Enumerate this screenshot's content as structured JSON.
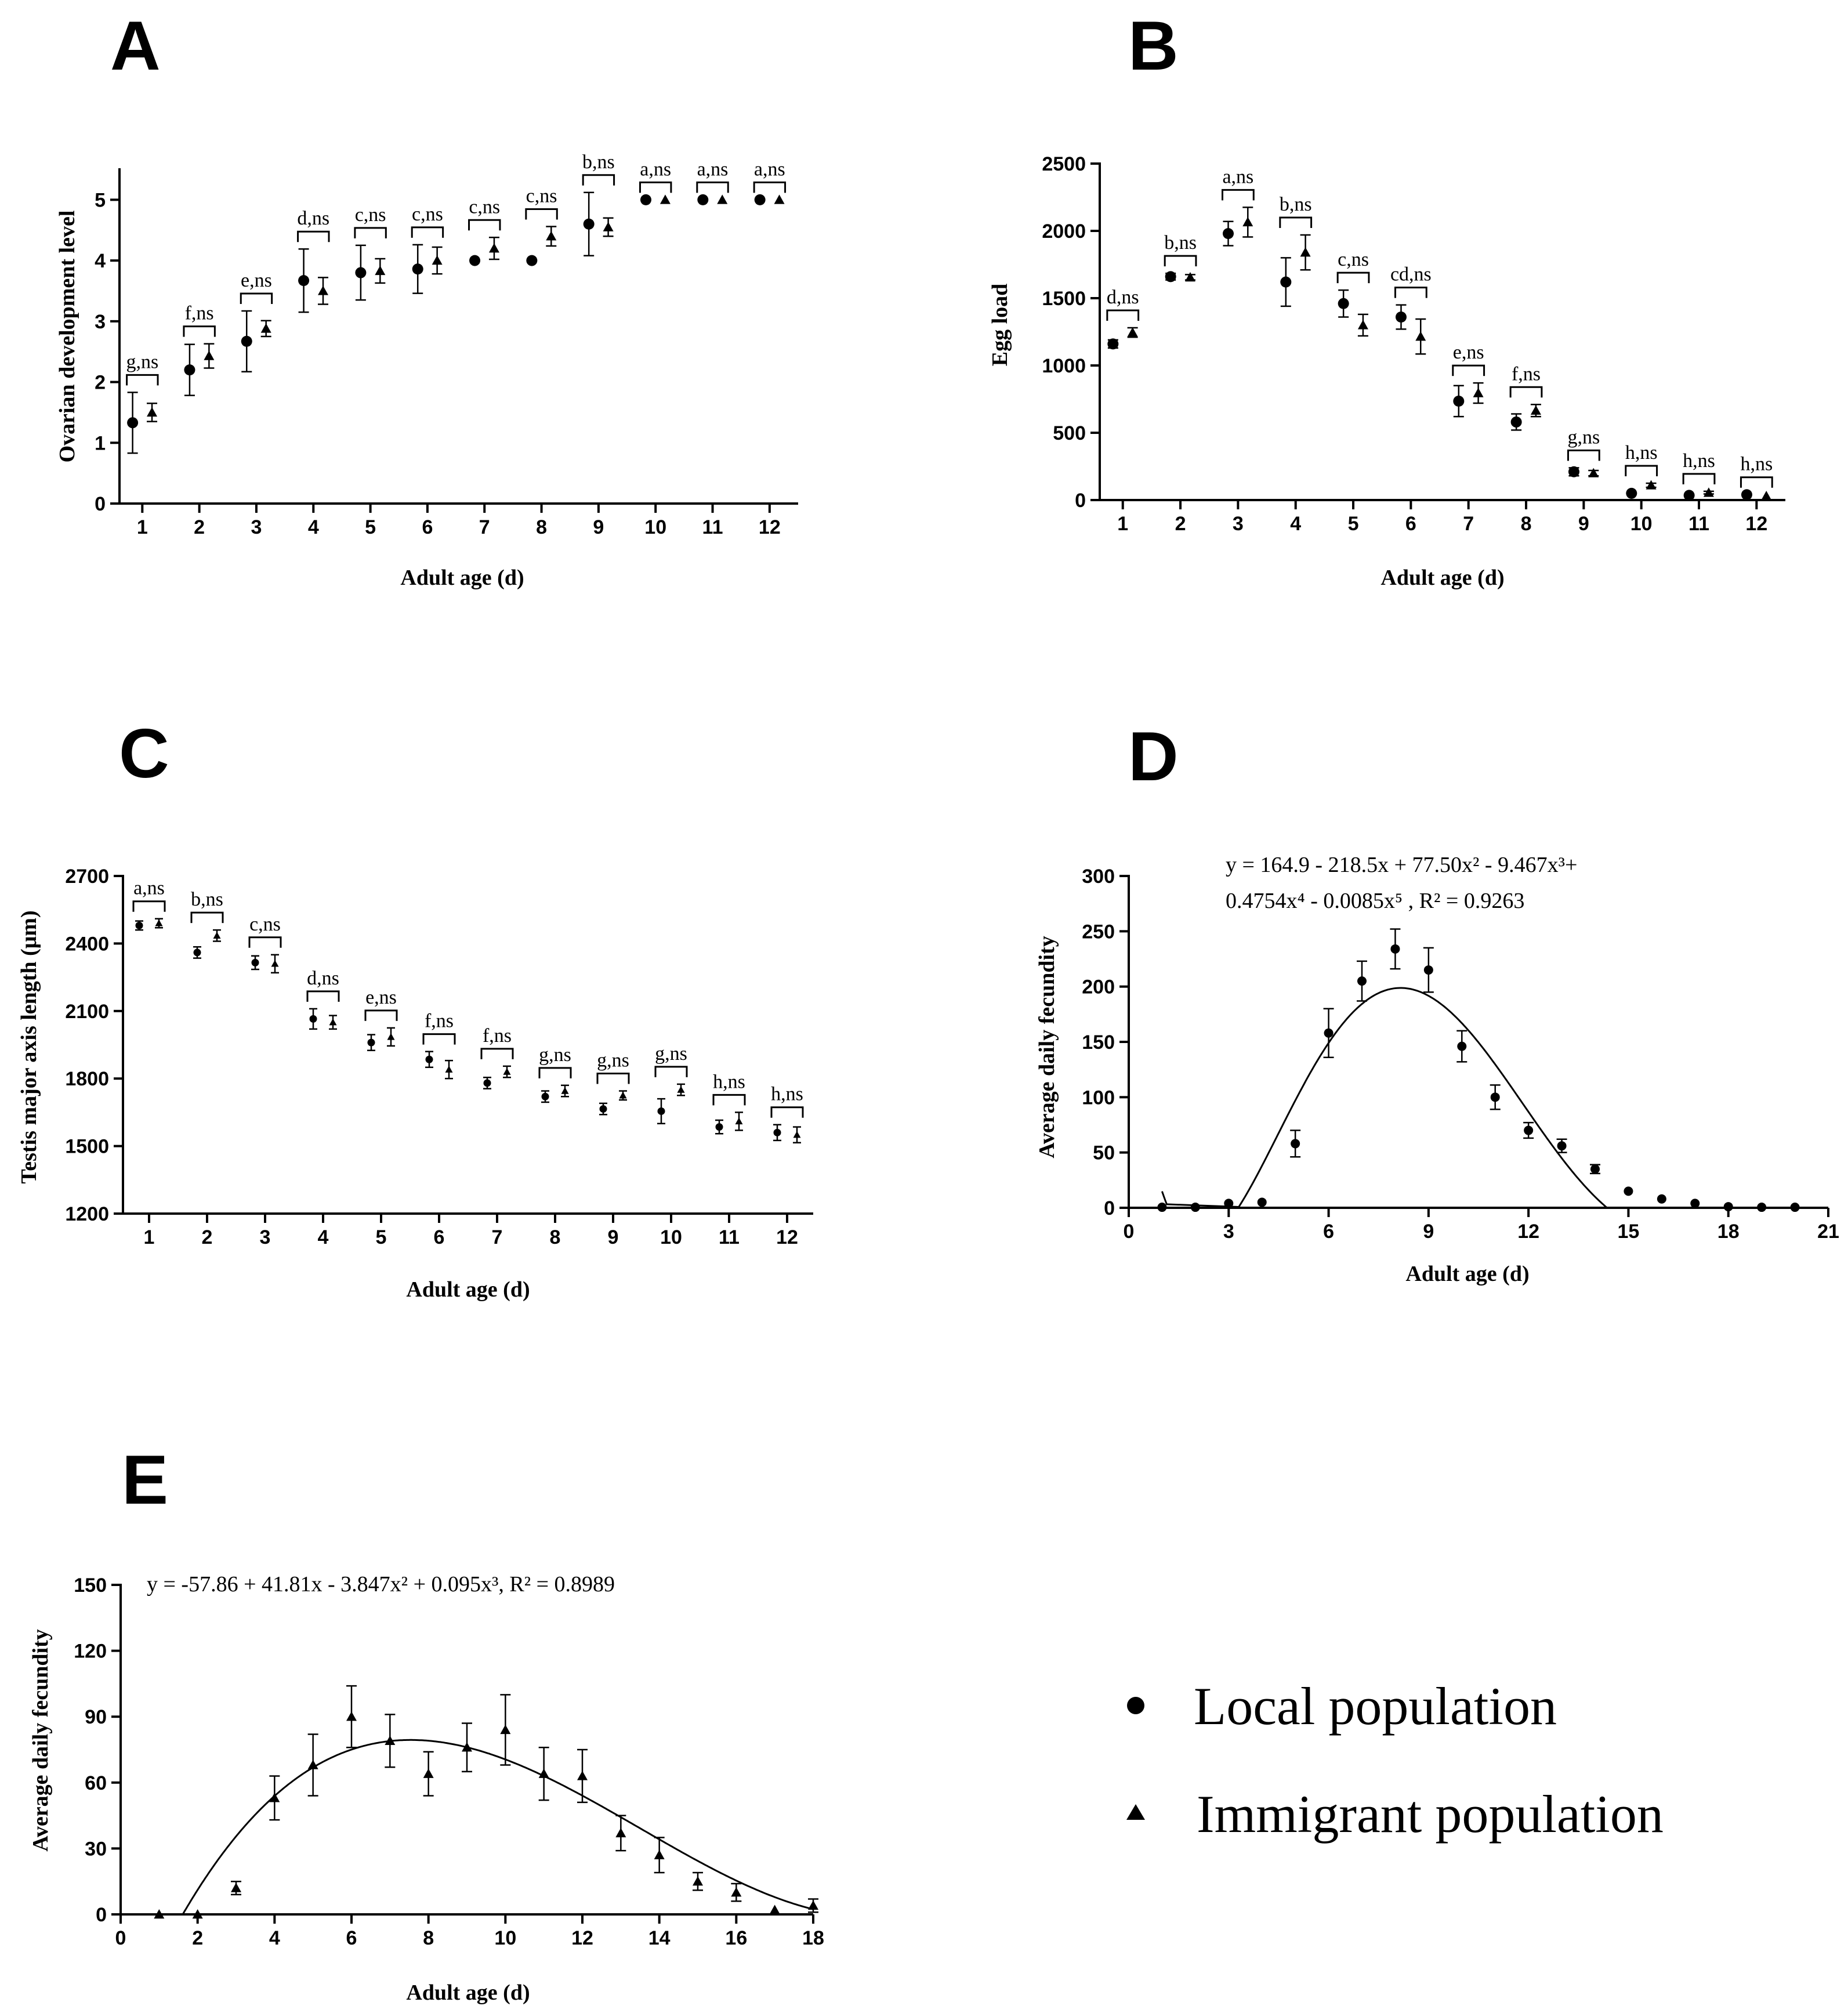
{
  "legend": {
    "local_label": "Local population",
    "immigrant_label": "Immigrant population"
  },
  "chart_data": [
    {
      "id": "A",
      "panel_label": "A",
      "type": "scatter",
      "xlabel": "Adult age (d)",
      "ylabel": "Ovarian development level",
      "x": [
        1,
        2,
        3,
        4,
        5,
        6,
        7,
        8,
        9,
        10,
        11,
        12
      ],
      "ylim": [
        0,
        5.5
      ],
      "yticks": [
        0,
        1,
        2,
        3,
        4,
        5
      ],
      "series": [
        {
          "name": "Local population",
          "marker": "circle",
          "values": [
            1.33,
            2.2,
            2.67,
            3.67,
            3.8,
            3.86,
            4.0,
            4.0,
            4.6,
            5.0,
            5.0,
            5.0
          ],
          "errors": [
            0.5,
            0.42,
            0.5,
            0.52,
            0.45,
            0.4,
            0,
            0,
            0.52,
            0,
            0,
            0
          ]
        },
        {
          "name": "Immigrant population",
          "marker": "triangle",
          "values": [
            1.5,
            2.43,
            2.88,
            3.5,
            3.83,
            4.0,
            4.2,
            4.4,
            4.55,
            5.0,
            5.0,
            5.0
          ],
          "errors": [
            0.15,
            0.2,
            0.13,
            0.22,
            0.2,
            0.22,
            0.18,
            0.16,
            0.15,
            0,
            0,
            0
          ]
        }
      ],
      "annotations": [
        "g,ns",
        "f,ns",
        "e,ns",
        "d,ns",
        "c,ns",
        "c,ns",
        "c,ns",
        "c,ns",
        "b,ns",
        "a,ns",
        "a,ns",
        "a,ns"
      ]
    },
    {
      "id": "B",
      "panel_label": "B",
      "type": "scatter",
      "xlabel": "Adult age (d)",
      "ylabel": "Egg load",
      "x": [
        1,
        2,
        3,
        4,
        5,
        6,
        7,
        8,
        9,
        10,
        11,
        12
      ],
      "ylim": [
        0,
        2500
      ],
      "yticks": [
        0,
        500,
        1000,
        1500,
        2000,
        2500
      ],
      "series": [
        {
          "name": "Local population",
          "marker": "circle",
          "values": [
            1160,
            1660,
            1980,
            1620,
            1460,
            1360,
            735,
            580,
            210,
            50,
            35,
            40
          ],
          "errors": [
            30,
            25,
            90,
            180,
            100,
            90,
            115,
            60,
            30,
            0,
            0,
            0
          ]
        },
        {
          "name": "Immigrant population",
          "marker": "triangle",
          "values": [
            1245,
            1655,
            2065,
            1840,
            1300,
            1215,
            795,
            665,
            200,
            110,
            55,
            30
          ],
          "errors": [
            35,
            20,
            110,
            130,
            80,
            130,
            75,
            45,
            20,
            15,
            10,
            0
          ]
        }
      ],
      "annotations": [
        "d,ns",
        "b,ns",
        "a,ns",
        "b,ns",
        "c,ns",
        "cd,ns",
        "e,ns",
        "f,ns",
        "g,ns",
        "h,ns",
        "h,ns",
        "h,ns"
      ]
    },
    {
      "id": "C",
      "panel_label": "C",
      "type": "scatter",
      "xlabel": "Adult age (d)",
      "ylabel": "Testis major axis length (μm)",
      "x": [
        1,
        2,
        3,
        4,
        5,
        6,
        7,
        8,
        9,
        10,
        11,
        12
      ],
      "ylim": [
        1200,
        2700
      ],
      "yticks": [
        1200,
        1500,
        1800,
        2100,
        2400,
        2700
      ],
      "series": [
        {
          "name": "Local population",
          "marker": "circle",
          "values": [
            2480,
            2360,
            2315,
            2065,
            1960,
            1885,
            1780,
            1720,
            1665,
            1655,
            1585,
            1560
          ],
          "errors": [
            20,
            25,
            30,
            45,
            35,
            35,
            25,
            25,
            25,
            55,
            30,
            35
          ]
        },
        {
          "name": "Immigrant population",
          "marker": "triangle",
          "values": [
            2490,
            2435,
            2310,
            2050,
            1985,
            1840,
            1830,
            1745,
            1725,
            1750,
            1610,
            1550
          ],
          "errors": [
            20,
            25,
            40,
            30,
            40,
            40,
            25,
            25,
            20,
            25,
            40,
            35
          ]
        }
      ],
      "annotations": [
        "a,ns",
        "b,ns",
        "c,ns",
        "d,ns",
        "e,ns",
        "f,ns",
        "f,ns",
        "g,ns",
        "g,ns",
        "g,ns",
        "h,ns",
        "h,ns"
      ]
    },
    {
      "id": "D",
      "panel_label": "D",
      "type": "scatter",
      "xlabel": "Adult age (d)",
      "ylabel": "Average daily fecundity",
      "xlim": [
        0,
        21
      ],
      "xticks": [
        0,
        3,
        6,
        9,
        12,
        15,
        18,
        21
      ],
      "ylim": [
        0,
        300
      ],
      "yticks": [
        0,
        50,
        100,
        150,
        200,
        250,
        300
      ],
      "series": [
        {
          "name": "Local population",
          "marker": "circle",
          "x": [
            1,
            2,
            3,
            4,
            5,
            6,
            7,
            8,
            9,
            10,
            11,
            12,
            13,
            14,
            15,
            16,
            17,
            18,
            19,
            20
          ],
          "values": [
            0.5,
            0.5,
            4,
            5,
            58,
            158,
            205,
            234,
            215,
            146,
            100,
            70,
            56,
            35,
            15,
            8,
            4,
            1,
            0.5,
            0.5
          ],
          "errors": [
            0,
            0,
            0,
            0,
            12,
            22,
            18,
            18,
            20,
            14,
            11,
            7,
            6,
            4,
            0,
            0,
            0,
            0,
            0,
            0
          ]
        }
      ],
      "fit": {
        "coefficients": [
          164.9,
          -218.5,
          77.5,
          -9.467,
          0.4754,
          -0.0085
        ],
        "xrange": [
          1,
          19.8
        ]
      },
      "equation_line1": "y = 164.9 - 218.5x + 77.50x² - 9.467x³+",
      "equation_line2": "0.4754x⁴ - 0.0085x⁵ , R² = 0.9263"
    },
    {
      "id": "E",
      "panel_label": "E",
      "type": "scatter",
      "xlabel": "Adult age (d)",
      "ylabel": "Average daily fecundity",
      "xlim": [
        0,
        18
      ],
      "xticks": [
        0,
        2,
        4,
        6,
        8,
        10,
        12,
        14,
        16,
        18
      ],
      "ylim": [
        0,
        150
      ],
      "yticks": [
        0,
        30,
        60,
        90,
        120,
        150
      ],
      "series": [
        {
          "name": "Immigrant population",
          "marker": "triangle",
          "x": [
            1,
            2,
            3,
            4,
            5,
            6,
            7,
            8,
            9,
            10,
            11,
            12,
            13,
            14,
            15,
            16,
            17,
            18
          ],
          "values": [
            0,
            0,
            12,
            53,
            68,
            90,
            79,
            64,
            76,
            84,
            64,
            63,
            37,
            27,
            15,
            10,
            2,
            4
          ],
          "errors": [
            0,
            0,
            3,
            10,
            14,
            14,
            12,
            10,
            11,
            16,
            12,
            12,
            8,
            8,
            4,
            4,
            0,
            3
          ]
        }
      ],
      "fit": {
        "coefficients": [
          -57.86,
          41.81,
          -3.847,
          0.095
        ],
        "xrange": [
          1.5,
          18
        ]
      },
      "equation": "y = -57.86 + 41.81x - 3.847x² + 0.095x³, R² = 0.8989"
    }
  ]
}
